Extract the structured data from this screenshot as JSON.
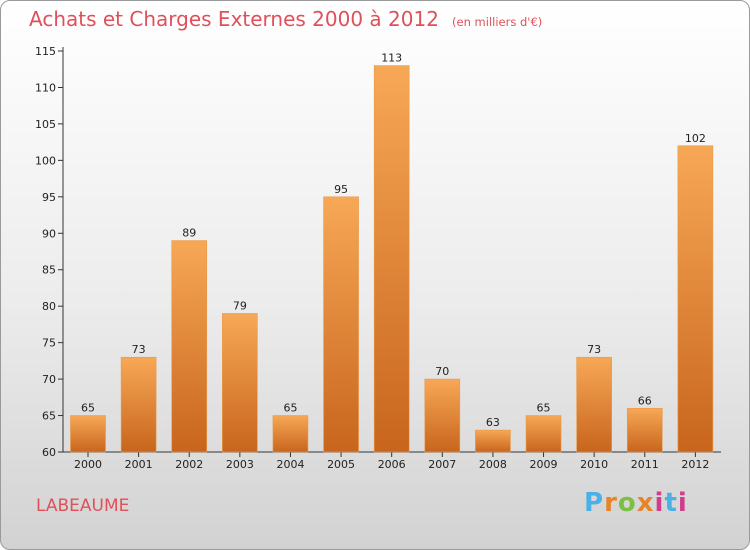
{
  "header": {
    "title": "Achats et Charges Externes 2000 à 2012",
    "subtitle": "(en milliers d'€)"
  },
  "footer": {
    "place": "LABEAUME",
    "logo_text": "Proxiti",
    "logo_colors": [
      "#4ab0e6",
      "#e6842a",
      "#7cc043",
      "#e6842a",
      "#d23c8c",
      "#4ab0e6",
      "#d23c8c"
    ]
  },
  "colors": {
    "bar_light": "#f7a856",
    "bar_dark": "#c8651d",
    "accent": "#e0505a"
  },
  "chart_data": {
    "type": "bar",
    "title": "Achats et Charges Externes 2000 à 2012",
    "subtitle": "(en milliers d'€)",
    "categories": [
      "2000",
      "2001",
      "2002",
      "2003",
      "2004",
      "2005",
      "2006",
      "2007",
      "2008",
      "2009",
      "2010",
      "2011",
      "2012"
    ],
    "values": [
      65,
      73,
      89,
      79,
      65,
      95,
      113,
      70,
      63,
      65,
      73,
      66,
      102
    ],
    "ylim": [
      60,
      115
    ],
    "yticks": [
      60,
      65,
      70,
      75,
      80,
      85,
      90,
      95,
      100,
      105,
      110,
      115
    ],
    "grid": false,
    "xlabel": "",
    "ylabel": ""
  }
}
